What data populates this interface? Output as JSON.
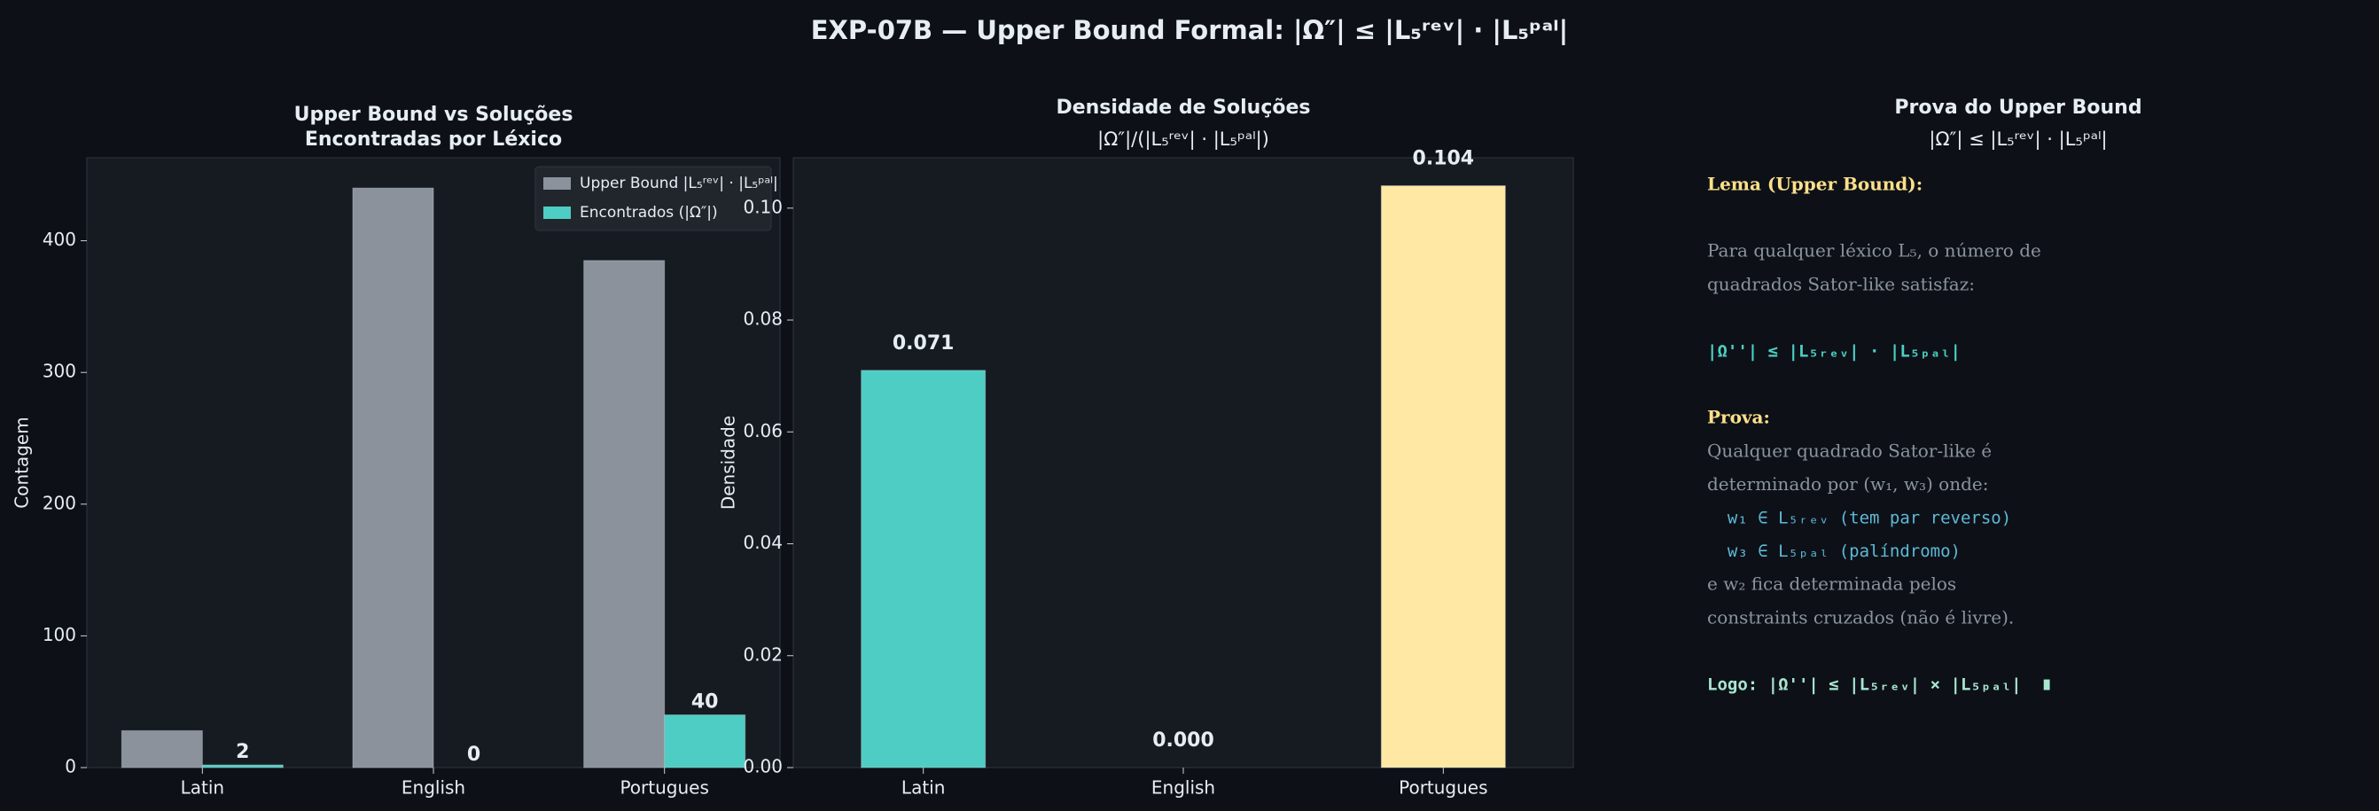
{
  "title": "EXP-07B — Upper Bound Formal: |Ω″| ≤ |L₅ʳᵉᵛ| · |L₅ᵖᵃˡ|",
  "chart_data": [
    {
      "type": "grouped-bar",
      "title": "Upper Bound vs Soluções\nEncontradas por Léxico",
      "ylabel": "Contagem",
      "categories": [
        "Latin",
        "English",
        "Portugues"
      ],
      "series": [
        {
          "name": "Upper Bound |L₅ʳᵉᵛ| · |L₅ᵖᵃˡ|",
          "color": "#8b929c",
          "values": [
            28,
            440,
            385
          ]
        },
        {
          "name": "Encontrados (|Ω″|)",
          "color": "#4ecdc4",
          "values": [
            2,
            0,
            40
          ],
          "show_values": true
        }
      ],
      "ylim": [
        0,
        463
      ],
      "yticks": [
        0,
        100,
        200,
        300,
        400
      ],
      "legend": "upper-right"
    },
    {
      "type": "bar",
      "title": "Densidade de Soluções",
      "subtitle": "|Ω″|/(|L₅ʳᵉᵛ| · |L₅ᵖᵃˡ|)",
      "ylabel": "Densidade",
      "categories": [
        "Latin",
        "English",
        "Portugues"
      ],
      "values": [
        0.071,
        0,
        0.104
      ],
      "value_labels": [
        "0.071",
        "0.000",
        "0.104"
      ],
      "colors": [
        "#4ecdc4",
        "#ff6b6b",
        "#ffe8a3"
      ],
      "ylim": [
        0,
        0.109
      ],
      "yticks": [
        {
          "value": 0,
          "label": "0.00"
        },
        0.02,
        0.04,
        0.06,
        0.08,
        {
          "value": 0.1,
          "label": "0.10"
        }
      ]
    }
  ],
  "proof": {
    "title": "Prova do Upper Bound",
    "subtitle": "|Ω″| ≤ |L₅ʳᵉᵛ| · |L₅ᵖᵃˡ|",
    "paragraphs": [
      [
        {
          "text": "Lema (Upper Bound):",
          "style": "heading"
        }
      ],
      [
        {
          "text": "Para qualquer léxico L₅, o número de",
          "style": "body"
        },
        {
          "text": "quadrados Sator-like satisfaz:",
          "style": "body"
        }
      ],
      [
        {
          "text": "|Ω''| ≤ |L₅ᵣₑᵥ| · |L₅ₚₐₗ|",
          "style": "formula"
        }
      ],
      [
        {
          "text": "Prova:",
          "style": "heading"
        },
        {
          "text": "Qualquer quadrado Sator-like é",
          "style": "body"
        },
        {
          "text": "determinado por (w₁, w₃) onde:",
          "style": "body"
        },
        {
          "text": "  w₁ ∈ L₅ᵣₑᵥ (tem par reverso)",
          "style": "item"
        },
        {
          "text": "  w₃ ∈ L₅ₚₐₗ (palíndromo)",
          "style": "item"
        },
        {
          "text": "e w₂ fica determinada pelos",
          "style": "body"
        },
        {
          "text": "constraints cruzados (não é livre).",
          "style": "body"
        }
      ],
      [
        {
          "text": "Logo: |Ω''| ≤ |L₅ᵣₑᵥ| × |L₅ₚₐₗ|  ∎",
          "style": "conclusion"
        }
      ]
    ]
  }
}
